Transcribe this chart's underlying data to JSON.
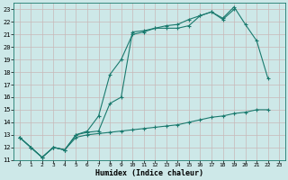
{
  "xlabel": "Humidex (Indice chaleur)",
  "bg_color": "#cde8e8",
  "grid_color": "#b0d0d0",
  "line_color": "#1a7a6e",
  "xlim": [
    -0.5,
    23.5
  ],
  "ylim": [
    11,
    23.5
  ],
  "xticks": [
    0,
    1,
    2,
    3,
    4,
    5,
    6,
    7,
    8,
    9,
    10,
    11,
    12,
    13,
    14,
    15,
    16,
    17,
    18,
    19,
    20,
    21,
    22,
    23
  ],
  "yticks": [
    11,
    12,
    13,
    14,
    15,
    16,
    17,
    18,
    19,
    20,
    21,
    22,
    23
  ],
  "line1_x": [
    0,
    1,
    2,
    3,
    4,
    5,
    6,
    7,
    8,
    9,
    10,
    11,
    12,
    13,
    14,
    15,
    16,
    17,
    18,
    19,
    20,
    21,
    22
  ],
  "line1_y": [
    12.8,
    12.0,
    11.2,
    12.0,
    11.8,
    13.0,
    13.3,
    14.5,
    17.8,
    19.0,
    21.0,
    21.2,
    21.5,
    21.5,
    21.5,
    21.7,
    22.5,
    22.8,
    22.3,
    23.2,
    21.8,
    20.5,
    17.5
  ],
  "line2_x": [
    0,
    1,
    2,
    3,
    4,
    5,
    6,
    7,
    8,
    9,
    10,
    11,
    12,
    13,
    14,
    15,
    16,
    17,
    18,
    19
  ],
  "line2_y": [
    12.8,
    12.0,
    11.2,
    12.0,
    11.8,
    13.0,
    13.2,
    13.3,
    15.5,
    16.0,
    21.2,
    21.3,
    21.5,
    21.7,
    21.8,
    22.2,
    22.5,
    22.8,
    22.2,
    23.0
  ],
  "line3_x": [
    0,
    1,
    2,
    3,
    4,
    5,
    6,
    7,
    8,
    9,
    10,
    11,
    12,
    13,
    14,
    15,
    16,
    17,
    18,
    19,
    20,
    21,
    22
  ],
  "line3_y": [
    12.8,
    12.0,
    11.2,
    12.0,
    11.8,
    12.8,
    13.0,
    13.1,
    13.2,
    13.3,
    13.4,
    13.5,
    13.6,
    13.7,
    13.8,
    14.0,
    14.2,
    14.4,
    14.5,
    14.7,
    14.8,
    15.0,
    15.0
  ]
}
